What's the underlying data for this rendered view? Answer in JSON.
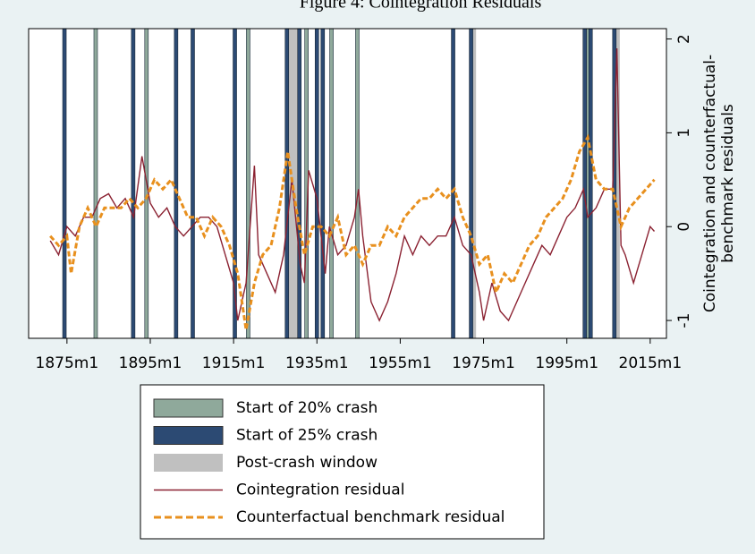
{
  "chart_data": {
    "type": "line",
    "title": "Figure 4: Cointegration Residuals",
    "xlim": [
      1865.8,
      2018.9
    ],
    "xticks": [
      {
        "value": 1875,
        "label": "1875m1"
      },
      {
        "value": 1895,
        "label": "1895m1"
      },
      {
        "value": 1915,
        "label": "1915m1"
      },
      {
        "value": 1935,
        "label": "1935m1"
      },
      {
        "value": 1955,
        "label": "1955m1"
      },
      {
        "value": 1975,
        "label": "1975m1"
      },
      {
        "value": 1995,
        "label": "1995m1"
      },
      {
        "value": 2015,
        "label": "2015m1"
      }
    ],
    "ylim": [
      -1.19,
      2.11
    ],
    "yticks": [
      -1,
      0,
      1,
      2
    ],
    "y_label": [
      "Cointegration and counterfactual-",
      "benchmark residuals"
    ],
    "series": [
      {
        "name": "Start of 20% crash",
        "type": "vband",
        "color": "#8fa99b",
        "x": [
          1881.9,
          1894.1,
          1918.5,
          1932.5,
          1938.5,
          1944.7,
          2000.0
        ]
      },
      {
        "name": "Start of 25% crash",
        "type": "vband",
        "color": "#2c4a73",
        "x": [
          1874.4,
          1890.9,
          1901.2,
          1905.2,
          1915.3,
          1927.8,
          1930.8,
          1935.0,
          1936.4,
          1967.7,
          1972.0,
          1999.3,
          2000.7,
          2006.4
        ]
      },
      {
        "name": "Post-crash window",
        "type": "window",
        "color": "#c0c0c0",
        "start": [
          1928.0,
          1972.0,
          2006.4
        ],
        "end": [
          1931.0,
          1973.2,
          2007.7
        ]
      },
      {
        "name": "Cointegration residual",
        "type": "line",
        "color": "#8b2232",
        "x": [
          1871,
          1873,
          1875,
          1877,
          1879,
          1881,
          1883,
          1885,
          1887,
          1889,
          1891,
          1893,
          1895,
          1897,
          1899,
          1901,
          1903,
          1905,
          1907,
          1909,
          1911,
          1913,
          1915,
          1916,
          1917,
          1918,
          1920,
          1921,
          1923,
          1925,
          1927,
          1929,
          1931,
          1932,
          1933,
          1935,
          1937,
          1938,
          1940,
          1942,
          1944,
          1945,
          1946,
          1948,
          1950,
          1952,
          1954,
          1956,
          1958,
          1960,
          1962,
          1964,
          1966,
          1968,
          1970,
          1972,
          1974,
          1975,
          1977,
          1979,
          1981,
          1983,
          1985,
          1987,
          1989,
          1991,
          1993,
          1995,
          1997,
          1999,
          2000,
          2002,
          2004,
          2006,
          2007,
          2008,
          2009,
          2011,
          2013,
          2015,
          2016
        ],
        "values": [
          -0.15,
          -0.3,
          0,
          -0.1,
          0.1,
          0.1,
          0.3,
          0.35,
          0.2,
          0.3,
          0.1,
          0.75,
          0.25,
          0.1,
          0.2,
          0.0,
          -0.1,
          0.0,
          0.1,
          0.1,
          0.0,
          -0.3,
          -0.6,
          -1.0,
          -0.8,
          -0.6,
          0.65,
          -0.3,
          -0.5,
          -0.7,
          -0.3,
          0.5,
          -0.4,
          -0.6,
          0.6,
          0.3,
          -0.5,
          0.0,
          -0.3,
          -0.2,
          0.1,
          0.4,
          -0.1,
          -0.8,
          -1.0,
          -0.8,
          -0.5,
          -0.1,
          -0.3,
          -0.1,
          -0.2,
          -0.1,
          -0.1,
          0.1,
          -0.2,
          -0.3,
          -0.7,
          -1.0,
          -0.6,
          -0.9,
          -1.0,
          -0.8,
          -0.6,
          -0.4,
          -0.2,
          -0.3,
          -0.1,
          0.1,
          0.2,
          0.4,
          0.1,
          0.2,
          0.4,
          0.4,
          1.9,
          -0.2,
          -0.3,
          -0.6,
          -0.3,
          0.0,
          -0.05
        ]
      },
      {
        "name": "Counterfactual benchmark residual",
        "type": "line",
        "color": "#e8901e",
        "dash": true,
        "x": [
          1871,
          1873,
          1875,
          1876,
          1878,
          1880,
          1882,
          1884,
          1886,
          1888,
          1890,
          1892,
          1894,
          1896,
          1898,
          1900,
          1902,
          1904,
          1906,
          1908,
          1910,
          1912,
          1914,
          1916,
          1918,
          1920,
          1922,
          1924,
          1926,
          1928,
          1930,
          1932,
          1934,
          1936,
          1938,
          1940,
          1942,
          1944,
          1946,
          1948,
          1950,
          1952,
          1954,
          1956,
          1958,
          1960,
          1962,
          1964,
          1966,
          1968,
          1970,
          1972,
          1974,
          1976,
          1978,
          1980,
          1982,
          1984,
          1986,
          1988,
          1990,
          1992,
          1994,
          1996,
          1998,
          2000,
          2002,
          2004,
          2006,
          2008,
          2010,
          2012,
          2014,
          2016
        ],
        "values": [
          -0.1,
          -0.2,
          -0.1,
          -0.5,
          0.0,
          0.2,
          0.0,
          0.2,
          0.2,
          0.2,
          0.3,
          0.2,
          0.3,
          0.5,
          0.4,
          0.5,
          0.3,
          0.1,
          0.1,
          -0.1,
          0.1,
          0.0,
          -0.2,
          -0.5,
          -1.1,
          -0.6,
          -0.3,
          -0.2,
          0.2,
          0.8,
          0.2,
          -0.3,
          0.0,
          0.0,
          -0.1,
          0.1,
          -0.3,
          -0.2,
          -0.4,
          -0.2,
          -0.2,
          0.0,
          -0.1,
          0.1,
          0.2,
          0.3,
          0.3,
          0.4,
          0.3,
          0.4,
          0.1,
          -0.1,
          -0.4,
          -0.3,
          -0.7,
          -0.5,
          -0.6,
          -0.4,
          -0.2,
          -0.1,
          0.1,
          0.2,
          0.3,
          0.5,
          0.8,
          0.95,
          0.5,
          0.4,
          0.4,
          0.0,
          0.2,
          0.3,
          0.4,
          0.5
        ]
      }
    ]
  }
}
